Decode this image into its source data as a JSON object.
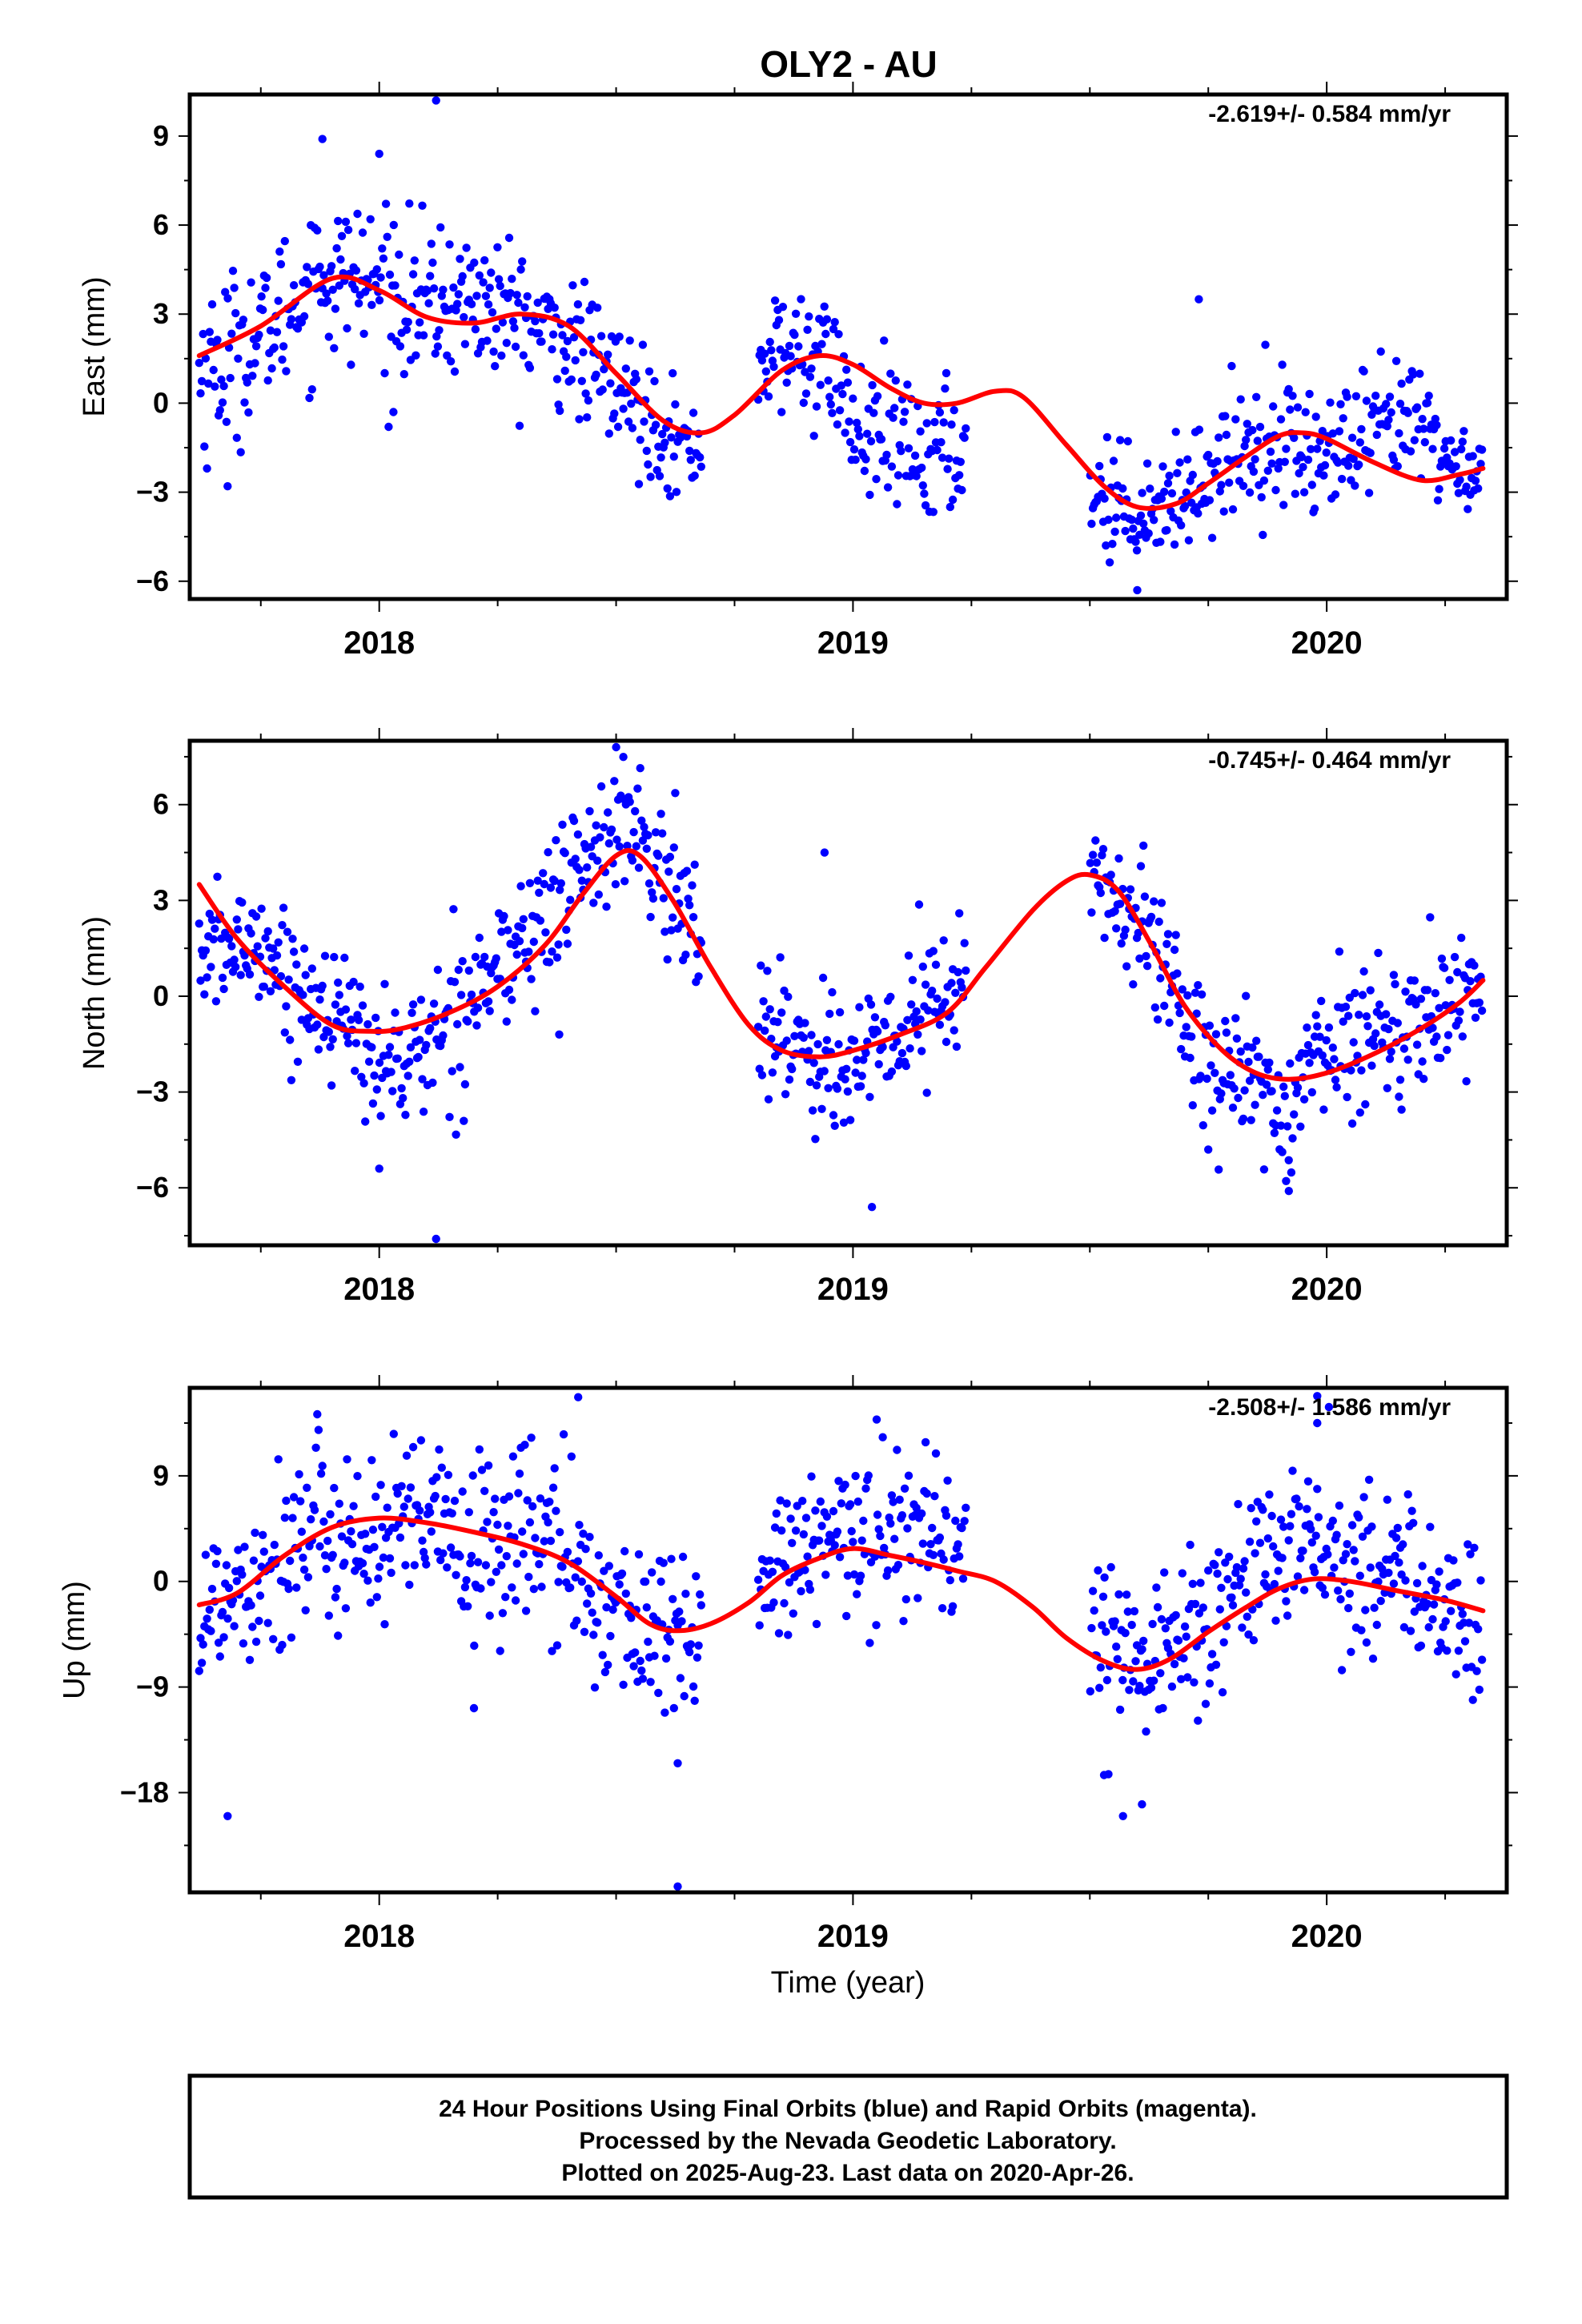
{
  "title": "OLY2 - AU",
  "xlabel": "Time (year)",
  "footer": [
    "24 Hour Positions Using Final Orbits (blue) and Rapid Orbits (magenta).",
    "Processed by the Nevada Geodetic Laboratory.",
    "Plotted on 2025-Aug-23. Last data on 2020-Apr-26."
  ],
  "colors": {
    "points": "#0000ff",
    "fit": "#ff0000",
    "axis": "#000000"
  },
  "chart_data": [
    {
      "type": "scatter",
      "ylabel": "East (mm)",
      "rate": "-2.619+/- 0.584 mm/yr",
      "xlim": [
        2017.6,
        2020.38
      ],
      "ylim": [
        -6.6,
        10.4
      ],
      "yticks": [
        9,
        6,
        3,
        0,
        -3,
        -6
      ],
      "ytick_labels": [
        "9",
        "6",
        "3",
        "0",
        "−3",
        "−6"
      ],
      "xticks": [
        2018,
        2019,
        2020
      ],
      "xtick_labels": [
        "2018",
        "2019",
        "2020"
      ],
      "gaps": [
        [
          2018.68,
          2018.8
        ],
        [
          2019.24,
          2019.5
        ]
      ],
      "outliers": [
        [
          2018.12,
          10.2
        ],
        [
          2017.88,
          8.9
        ],
        [
          2018.0,
          8.4
        ],
        [
          2017.68,
          -2.8
        ],
        [
          2019.6,
          -6.3
        ],
        [
          2018.03,
          -0.3
        ],
        [
          2019.73,
          3.5
        ]
      ],
      "fit": [
        [
          2017.62,
          1.6
        ],
        [
          2017.75,
          2.6
        ],
        [
          2017.9,
          4.2
        ],
        [
          2018.0,
          3.8
        ],
        [
          2018.1,
          2.9
        ],
        [
          2018.2,
          2.7
        ],
        [
          2018.3,
          3.0
        ],
        [
          2018.4,
          2.6
        ],
        [
          2018.5,
          1.0
        ],
        [
          2018.6,
          -0.6
        ],
        [
          2018.68,
          -1.0
        ],
        [
          2018.75,
          -0.4
        ],
        [
          2018.85,
          1.1
        ],
        [
          2018.93,
          1.6
        ],
        [
          2019.0,
          1.3
        ],
        [
          2019.08,
          0.5
        ],
        [
          2019.15,
          0.0
        ],
        [
          2019.22,
          0.0
        ],
        [
          2019.3,
          0.4
        ],
        [
          2019.36,
          0.2
        ],
        [
          2019.45,
          -1.4
        ],
        [
          2019.53,
          -2.8
        ],
        [
          2019.6,
          -3.5
        ],
        [
          2019.68,
          -3.4
        ],
        [
          2019.75,
          -2.7
        ],
        [
          2019.83,
          -1.8
        ],
        [
          2019.9,
          -1.1
        ],
        [
          2019.95,
          -1.0
        ],
        [
          2020.0,
          -1.2
        ],
        [
          2020.1,
          -2.0
        ],
        [
          2020.2,
          -2.6
        ],
        [
          2020.28,
          -2.4
        ],
        [
          2020.33,
          -2.2
        ]
      ],
      "trend_segments": [
        [
          2017.62,
          1.0,
          1.8
        ],
        [
          2017.75,
          2.2,
          1.4
        ],
        [
          2017.87,
          4.3,
          1.5
        ],
        [
          2018.0,
          4.0,
          1.5
        ],
        [
          2018.1,
          3.3,
          1.4
        ],
        [
          2018.2,
          3.5,
          1.4
        ],
        [
          2018.3,
          2.8,
          1.3
        ],
        [
          2018.4,
          2.0,
          1.3
        ],
        [
          2018.5,
          0.6,
          1.2
        ],
        [
          2018.6,
          -0.8,
          1.1
        ],
        [
          2018.66,
          -1.7,
          0.8
        ],
        [
          2018.82,
          1.6,
          1.1
        ],
        [
          2018.9,
          1.7,
          1.3
        ],
        [
          2018.97,
          1.0,
          1.2
        ],
        [
          2019.0,
          -1.0,
          1.2
        ],
        [
          2019.08,
          -1.4,
          1.3
        ],
        [
          2019.15,
          -1.8,
          1.4
        ],
        [
          2019.2,
          -1.5,
          1.3
        ],
        [
          2019.52,
          -3.0,
          1.2
        ],
        [
          2019.6,
          -3.6,
          1.0
        ],
        [
          2019.68,
          -3.2,
          0.9
        ],
        [
          2019.75,
          -2.4,
          1.0
        ],
        [
          2019.83,
          -1.4,
          1.2
        ],
        [
          2019.9,
          -1.0,
          1.3
        ],
        [
          2019.97,
          -1.8,
          1.2
        ],
        [
          2020.05,
          -1.6,
          1.3
        ],
        [
          2020.12,
          -1.0,
          1.2
        ],
        [
          2020.2,
          -0.6,
          1.3
        ],
        [
          2020.27,
          -2.3,
          0.8
        ],
        [
          2020.33,
          -2.0,
          0.8
        ]
      ]
    },
    {
      "type": "scatter",
      "ylabel": "North (mm)",
      "rate": "-0.745+/- 0.464 mm/yr",
      "xlim": [
        2017.6,
        2020.38
      ],
      "ylim": [
        -7.8,
        8.0
      ],
      "yticks": [
        6,
        3,
        0,
        -3,
        -6
      ],
      "ytick_labels": [
        "6",
        "3",
        "0",
        "−3",
        "−6"
      ],
      "xticks": [
        2018,
        2019,
        2020
      ],
      "xtick_labels": [
        "2018",
        "2019",
        "2020"
      ],
      "gaps": [
        [
          2018.68,
          2018.8
        ],
        [
          2019.24,
          2019.5
        ]
      ],
      "outliers": [
        [
          2018.5,
          7.8
        ],
        [
          2018.12,
          -7.6
        ],
        [
          2019.04,
          -6.6
        ],
        [
          2018.0,
          -5.4
        ],
        [
          2019.92,
          -6.1
        ],
        [
          2018.94,
          4.5
        ],
        [
          2018.38,
          -1.2
        ]
      ],
      "fit": [
        [
          2017.62,
          3.5
        ],
        [
          2017.7,
          1.8
        ],
        [
          2017.8,
          0.3
        ],
        [
          2017.9,
          -0.9
        ],
        [
          2017.98,
          -1.1
        ],
        [
          2018.05,
          -1.0
        ],
        [
          2018.15,
          -0.5
        ],
        [
          2018.25,
          0.3
        ],
        [
          2018.35,
          1.6
        ],
        [
          2018.43,
          3.2
        ],
        [
          2018.5,
          4.4
        ],
        [
          2018.55,
          4.4
        ],
        [
          2018.62,
          3.0
        ],
        [
          2018.7,
          0.9
        ],
        [
          2018.78,
          -0.9
        ],
        [
          2018.85,
          -1.7
        ],
        [
          2018.93,
          -1.9
        ],
        [
          2019.0,
          -1.7
        ],
        [
          2019.1,
          -1.2
        ],
        [
          2019.2,
          -0.5
        ],
        [
          2019.28,
          0.9
        ],
        [
          2019.38,
          2.7
        ],
        [
          2019.45,
          3.6
        ],
        [
          2019.5,
          3.8
        ],
        [
          2019.56,
          3.3
        ],
        [
          2019.63,
          1.6
        ],
        [
          2019.7,
          -0.3
        ],
        [
          2019.78,
          -1.7
        ],
        [
          2019.85,
          -2.4
        ],
        [
          2019.92,
          -2.6
        ],
        [
          2020.0,
          -2.4
        ],
        [
          2020.1,
          -1.8
        ],
        [
          2020.2,
          -1.0
        ],
        [
          2020.28,
          -0.2
        ],
        [
          2020.33,
          0.5
        ]
      ],
      "trend_segments": [
        [
          2017.62,
          1.3,
          1.1
        ],
        [
          2017.68,
          1.4,
          1.0
        ],
        [
          2017.75,
          1.8,
          1.0
        ],
        [
          2017.82,
          0.2,
          1.1
        ],
        [
          2017.9,
          -0.3,
          1.1
        ],
        [
          2017.97,
          -1.6,
          1.2
        ],
        [
          2018.05,
          -2.2,
          1.2
        ],
        [
          2018.12,
          -1.3,
          1.3
        ],
        [
          2018.2,
          0.3,
          1.3
        ],
        [
          2018.28,
          1.2,
          1.3
        ],
        [
          2018.35,
          2.5,
          1.4
        ],
        [
          2018.42,
          4.0,
          1.3
        ],
        [
          2018.48,
          5.0,
          1.1
        ],
        [
          2018.54,
          5.3,
          1.0
        ],
        [
          2018.6,
          3.6,
          1.3
        ],
        [
          2018.66,
          2.4,
          1.4
        ],
        [
          2018.82,
          -1.0,
          1.2
        ],
        [
          2018.9,
          -1.5,
          1.4
        ],
        [
          2018.97,
          -2.3,
          1.3
        ],
        [
          2019.05,
          -2.0,
          1.3
        ],
        [
          2019.12,
          -0.6,
          1.4
        ],
        [
          2019.2,
          0.0,
          1.3
        ],
        [
          2019.51,
          3.8,
          1.1
        ],
        [
          2019.56,
          2.8,
          1.0
        ],
        [
          2019.62,
          2.0,
          1.2
        ],
        [
          2019.68,
          0.2,
          1.3
        ],
        [
          2019.74,
          -1.8,
          1.2
        ],
        [
          2019.8,
          -2.4,
          1.2
        ],
        [
          2019.86,
          -3.2,
          1.3
        ],
        [
          2019.93,
          -3.4,
          1.3
        ],
        [
          2020.0,
          -1.3,
          1.2
        ],
        [
          2020.07,
          -1.4,
          1.2
        ],
        [
          2020.14,
          -1.0,
          1.2
        ],
        [
          2020.2,
          -0.8,
          1.1
        ],
        [
          2020.27,
          0.1,
          1.0
        ],
        [
          2020.33,
          0.3,
          1.0
        ]
      ]
    },
    {
      "type": "scatter",
      "ylabel": "Up (mm)",
      "rate": "-2.508+/- 1.586 mm/yr",
      "xlim": [
        2017.6,
        2020.38
      ],
      "ylim": [
        -26.5,
        16.5
      ],
      "yticks": [
        9,
        0,
        -9,
        -18
      ],
      "ytick_labels": [
        "9",
        "0",
        "−9",
        "−18"
      ],
      "xticks": [
        2018,
        2019,
        2020
      ],
      "xtick_labels": [
        "2018",
        "2019",
        "2020"
      ],
      "gaps": [
        [
          2018.68,
          2018.8
        ],
        [
          2019.24,
          2019.5
        ]
      ],
      "outliers": [
        [
          2017.68,
          -20.0
        ],
        [
          2018.63,
          -26.0
        ],
        [
          2018.42,
          15.7
        ],
        [
          2019.53,
          -16.5
        ],
        [
          2019.57,
          -20.0
        ],
        [
          2019.61,
          -19.0
        ],
        [
          2018.63,
          -15.5
        ],
        [
          2019.98,
          15.8
        ],
        [
          2019.98,
          13.5
        ],
        [
          2019.05,
          13.8
        ],
        [
          2018.2,
          -10.8
        ]
      ],
      "fit": [
        [
          2017.62,
          -2.0
        ],
        [
          2017.7,
          -1.0
        ],
        [
          2017.8,
          2.2
        ],
        [
          2017.9,
          4.6
        ],
        [
          2018.0,
          5.4
        ],
        [
          2018.1,
          5.0
        ],
        [
          2018.2,
          4.2
        ],
        [
          2018.3,
          3.2
        ],
        [
          2018.4,
          1.6
        ],
        [
          2018.5,
          -1.3
        ],
        [
          2018.57,
          -3.6
        ],
        [
          2018.63,
          -4.2
        ],
        [
          2018.7,
          -3.6
        ],
        [
          2018.78,
          -1.8
        ],
        [
          2018.85,
          0.5
        ],
        [
          2018.93,
          2.0
        ],
        [
          2019.0,
          2.8
        ],
        [
          2019.08,
          2.2
        ],
        [
          2019.15,
          1.6
        ],
        [
          2019.22,
          0.9
        ],
        [
          2019.3,
          0.0
        ],
        [
          2019.38,
          -2.2
        ],
        [
          2019.45,
          -4.8
        ],
        [
          2019.53,
          -6.8
        ],
        [
          2019.6,
          -7.5
        ],
        [
          2019.67,
          -6.6
        ],
        [
          2019.75,
          -4.3
        ],
        [
          2019.83,
          -2.2
        ],
        [
          2019.9,
          -0.6
        ],
        [
          2019.97,
          0.2
        ],
        [
          2020.05,
          0.0
        ],
        [
          2020.15,
          -0.8
        ],
        [
          2020.25,
          -1.6
        ],
        [
          2020.33,
          -2.5
        ]
      ],
      "trend_segments": [
        [
          2017.62,
          -3.5,
          4.0
        ],
        [
          2017.7,
          0.0,
          4.5
        ],
        [
          2017.8,
          2.5,
          4.5
        ],
        [
          2017.9,
          4.5,
          4.5
        ],
        [
          2018.0,
          3.0,
          4.5
        ],
        [
          2018.1,
          5.0,
          4.5
        ],
        [
          2018.2,
          2.0,
          4.5
        ],
        [
          2018.3,
          5.0,
          4.5
        ],
        [
          2018.4,
          1.5,
          4.5
        ],
        [
          2018.5,
          -2.5,
          4.0
        ],
        [
          2018.6,
          -5.0,
          3.8
        ],
        [
          2018.65,
          -4.5,
          3.8
        ],
        [
          2018.82,
          -0.5,
          3.5
        ],
        [
          2018.9,
          2.5,
          4.0
        ],
        [
          2018.97,
          3.0,
          4.0
        ],
        [
          2019.05,
          4.5,
          4.0
        ],
        [
          2019.12,
          5.0,
          4.0
        ],
        [
          2019.2,
          3.5,
          4.5
        ],
        [
          2019.52,
          -4.5,
          4.0
        ],
        [
          2019.6,
          -6.0,
          3.5
        ],
        [
          2019.68,
          -5.5,
          3.5
        ],
        [
          2019.75,
          -3.0,
          4.0
        ],
        [
          2019.83,
          0.0,
          4.0
        ],
        [
          2019.9,
          2.0,
          4.0
        ],
        [
          2019.97,
          3.5,
          4.5
        ],
        [
          2020.05,
          1.0,
          4.0
        ],
        [
          2020.12,
          1.5,
          4.0
        ],
        [
          2020.2,
          -0.5,
          3.5
        ],
        [
          2020.27,
          -3.0,
          3.5
        ],
        [
          2020.33,
          -3.5,
          3.5
        ]
      ]
    }
  ]
}
